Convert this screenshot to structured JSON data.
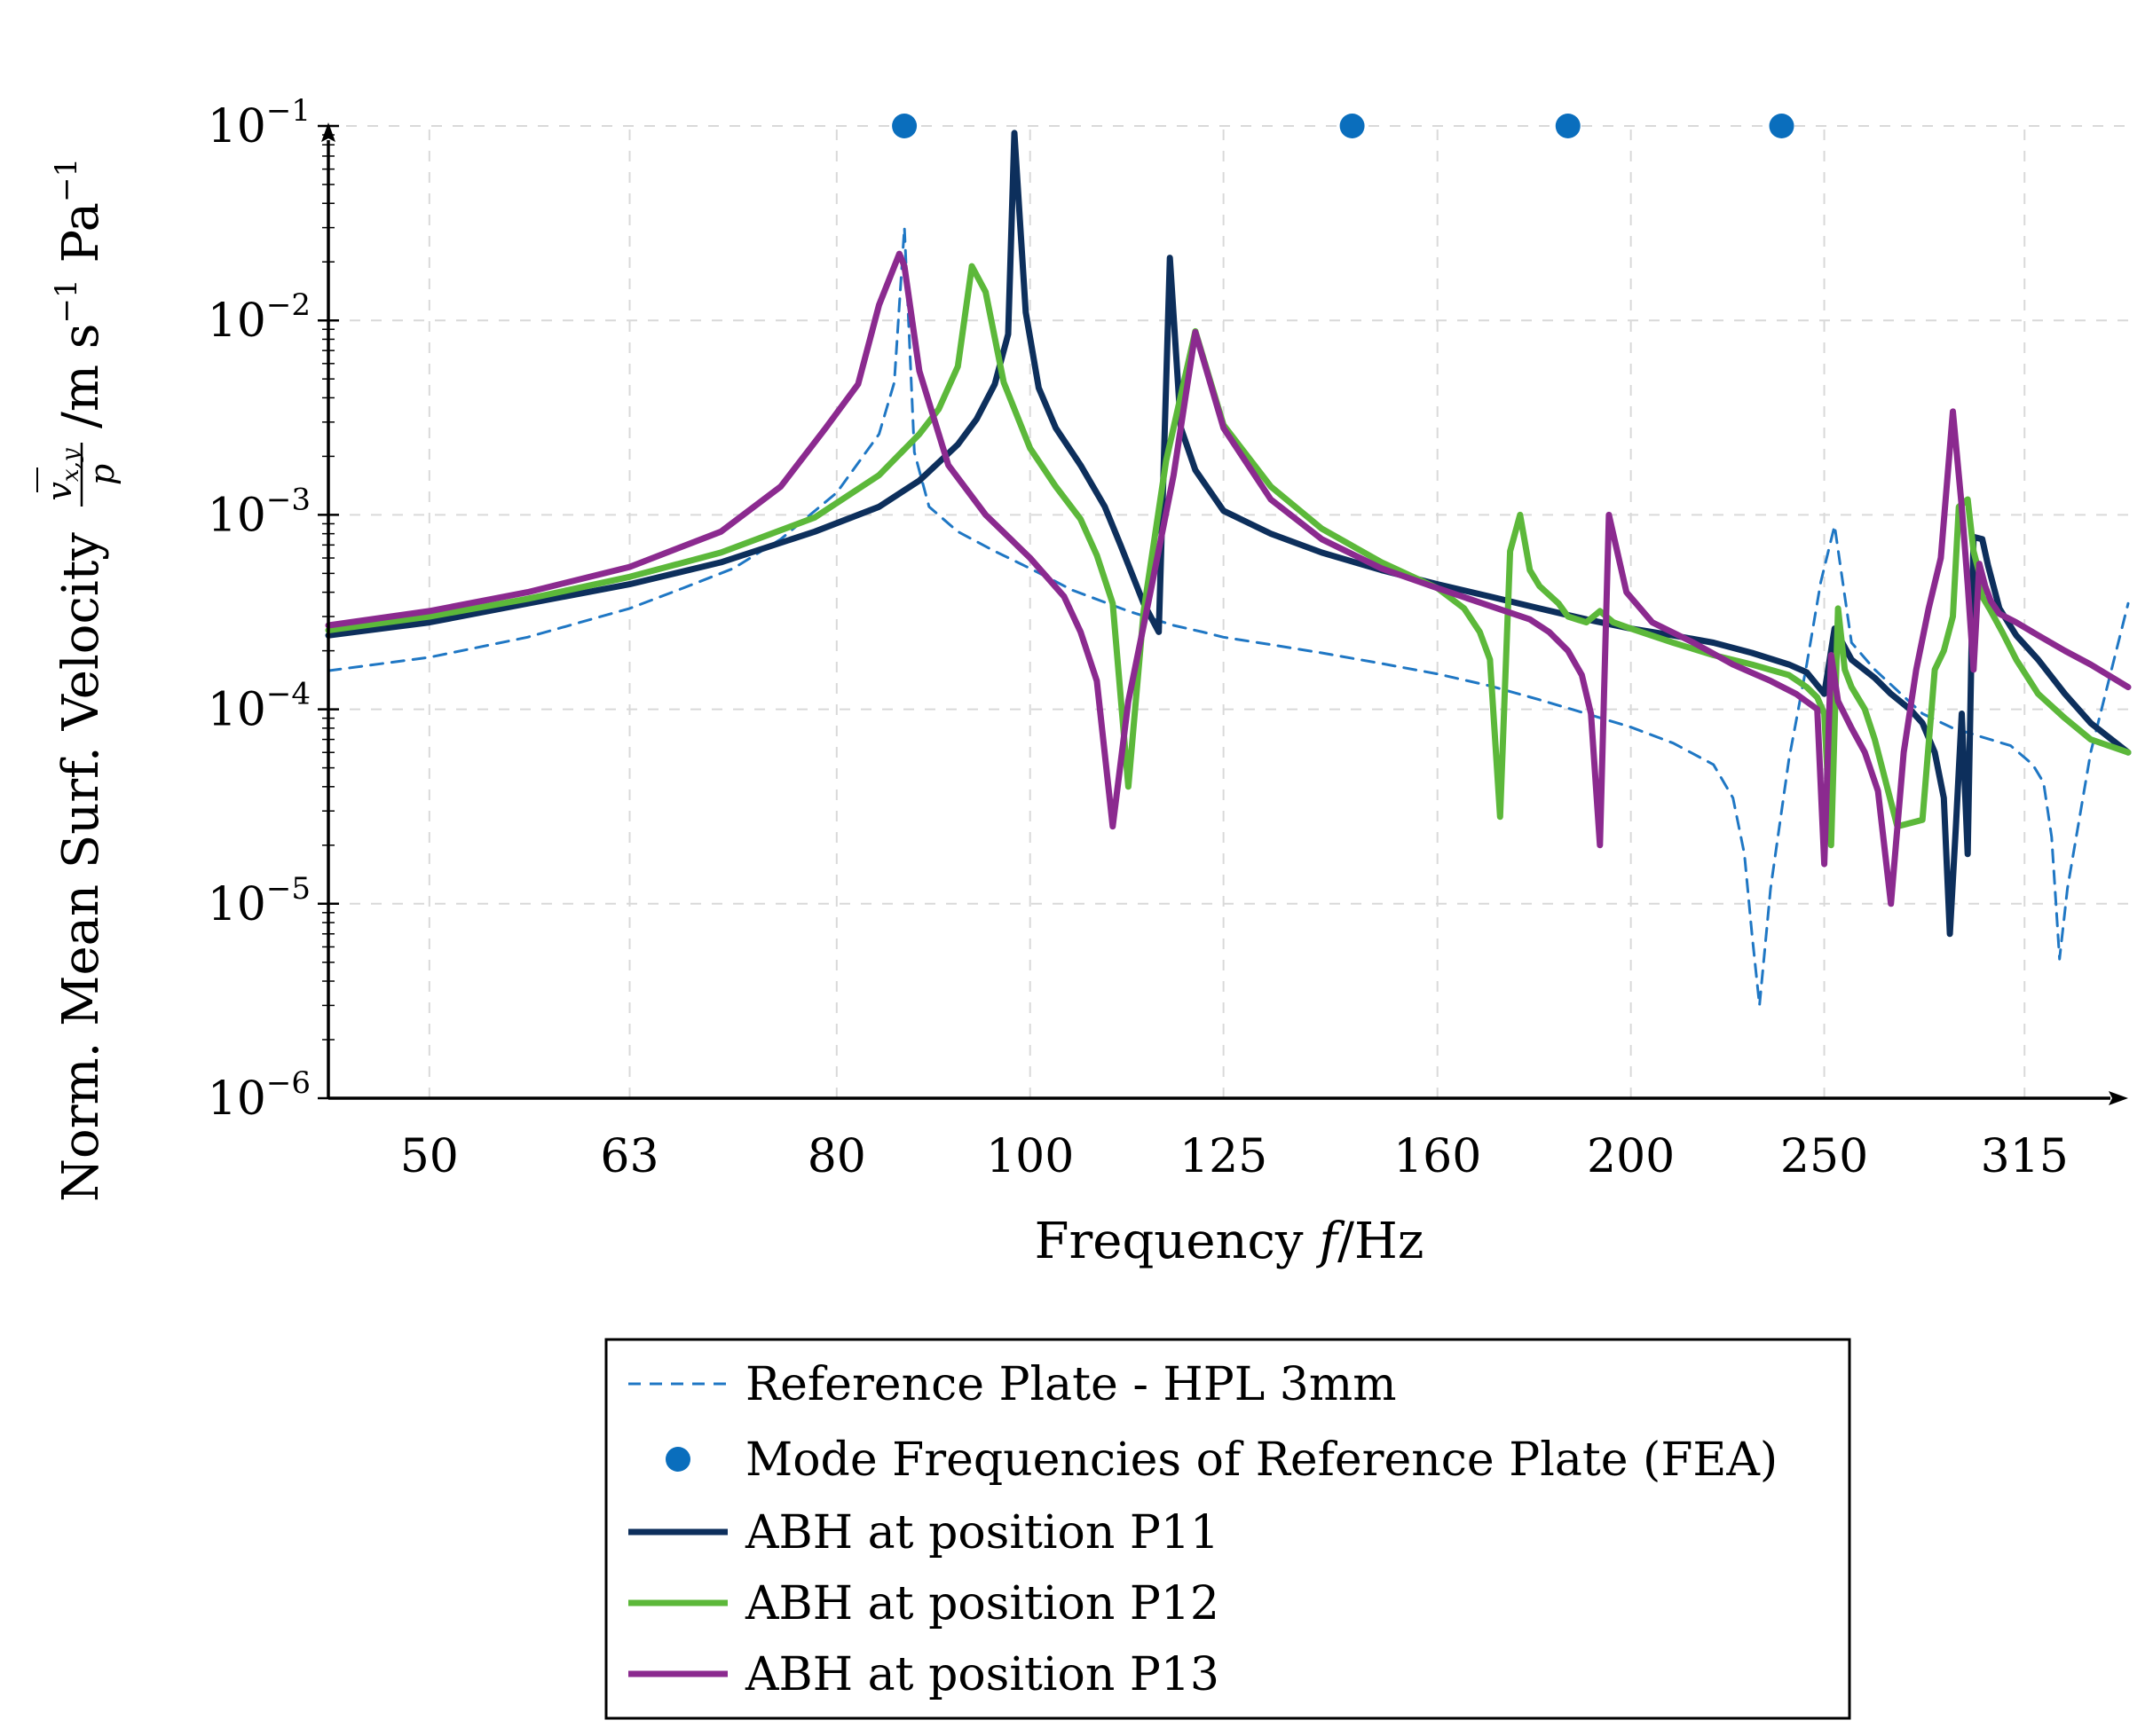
{
  "chart_data": {
    "type": "line",
    "xscale": "log",
    "yscale": "log",
    "xlim": [
      44.5,
      355
    ],
    "ylim": [
      1e-06,
      0.1
    ],
    "xlabel_text": "Frequency",
    "xlabel_var": "f",
    "xlabel_unit": "/Hz",
    "ylabel_prefix": "Norm. Mean Surf. Velocity",
    "ylabel_num": "v",
    "ylabel_num_sub": "x,y",
    "ylabel_den": "p",
    "ylabel_unit": "/m s",
    "ylabel_unit_exp1": "−1",
    "ylabel_unit2": " Pa",
    "ylabel_unit_exp2": "−1",
    "x_ticks": [
      50,
      63,
      80,
      100,
      125,
      160,
      200,
      250,
      315
    ],
    "x_tick_labels": [
      "50",
      "63",
      "80",
      "100",
      "125",
      "160",
      "200",
      "250",
      "315"
    ],
    "y_ticks": [
      {
        "value": 0.1,
        "base": "10",
        "exp": "−1"
      },
      {
        "value": 0.01,
        "base": "10",
        "exp": "−2"
      },
      {
        "value": 0.001,
        "base": "10",
        "exp": "−3"
      },
      {
        "value": 0.0001,
        "base": "10",
        "exp": "−4"
      },
      {
        "value": 1e-05,
        "base": "10",
        "exp": "−5"
      },
      {
        "value": 1e-06,
        "base": "10",
        "exp": "−6"
      }
    ],
    "legend_position": "bottom-center",
    "series": [
      {
        "name": "Reference Plate - HPL 3mm",
        "color": "#1f77c4",
        "style": "dashed",
        "x": [
          44.5,
          50,
          56,
          63,
          67,
          71,
          75,
          80,
          84,
          85.5,
          86.5,
          87.5,
          89,
          92,
          96,
          100,
          105,
          112,
          118,
          122,
          125,
          132,
          140,
          150,
          160,
          170,
          180,
          190,
          200,
          210,
          220,
          225,
          228,
          230,
          232,
          235,
          240,
          245,
          249,
          253,
          258,
          265,
          272,
          280,
          290,
          300,
          310,
          318,
          322,
          325,
          328,
          331,
          340,
          355
        ],
        "y": [
          0.000158,
          0.000185,
          0.000235,
          0.00033,
          0.00042,
          0.00053,
          0.00075,
          0.0013,
          0.0026,
          0.0048,
          0.03,
          0.0021,
          0.0011,
          0.00082,
          0.00065,
          0.00053,
          0.00041,
          0.00032,
          0.00027,
          0.00025,
          0.000235,
          0.000215,
          0.000195,
          0.000172,
          0.000152,
          0.000132,
          0.000112,
          9.5e-05,
          8.1e-05,
          6.7e-05,
          5.2e-05,
          3.5e-05,
          1.8e-05,
          7e-06,
          3e-06,
          1.2e-05,
          5.5e-05,
          0.00017,
          0.00045,
          0.00088,
          0.00022,
          0.00016,
          0.000125,
          9.5e-05,
          8e-05,
          7.2e-05,
          6.5e-05,
          5.2e-05,
          4.2e-05,
          2.2e-05,
          5.2e-06,
          1.2e-05,
          6e-05,
          0.00035
        ]
      },
      {
        "name": "Mode Frequencies of Reference Plate (FEA)",
        "color": "#0a6ebd",
        "style": "markers",
        "x": [
          86.5,
          145,
          186,
          238
        ],
        "y": [
          0.1,
          0.1,
          0.1,
          0.1
        ]
      },
      {
        "name": "ABH at position P11",
        "color": "#0d2f5c",
        "style": "solid",
        "x": [
          44.5,
          50,
          56,
          63,
          70,
          78,
          84,
          88,
          92,
          94,
          96,
          97.5,
          98.2,
          99.5,
          101,
          103,
          106,
          109,
          111,
          114,
          116,
          117.5,
          119,
          121,
          125,
          132,
          140,
          150,
          160,
          170,
          180,
          190,
          200,
          210,
          220,
          230,
          240,
          245,
          250,
          253,
          258,
          265,
          270,
          276,
          280,
          284,
          287,
          289,
          291,
          293,
          295,
          297,
          300,
          302,
          306,
          312,
          320,
          330,
          340,
          355
        ],
        "y": [
          0.00024,
          0.00028,
          0.00035,
          0.00044,
          0.00057,
          0.00082,
          0.0011,
          0.0015,
          0.0023,
          0.0031,
          0.0047,
          0.0085,
          0.092,
          0.011,
          0.0045,
          0.0028,
          0.0018,
          0.0011,
          0.0007,
          0.00035,
          0.00025,
          0.021,
          0.0028,
          0.0017,
          0.00105,
          0.0008,
          0.00064,
          0.00052,
          0.00044,
          0.00038,
          0.00033,
          0.00029,
          0.00026,
          0.00024,
          0.00022,
          0.000195,
          0.00017,
          0.000155,
          0.00012,
          0.00026,
          0.00018,
          0.000145,
          0.00012,
          0.0001,
          8.5e-05,
          6e-05,
          3.5e-05,
          7e-06,
          2.5e-05,
          9.5e-05,
          1.8e-05,
          0.00077,
          0.00075,
          0.00055,
          0.00033,
          0.00024,
          0.00018,
          0.00012,
          8.5e-05,
          6e-05
        ]
      },
      {
        "name": "ABH at position P12",
        "color": "#5cb83a",
        "style": "solid",
        "x": [
          44.5,
          50,
          56,
          63,
          70,
          78,
          84,
          88,
          90,
          92,
          93.5,
          95,
          97,
          100,
          103,
          106,
          108,
          110,
          112,
          114,
          117,
          121,
          125,
          132,
          140,
          150,
          160,
          165,
          168,
          170,
          172,
          174,
          176,
          178,
          180,
          184,
          186,
          190,
          193,
          196,
          200,
          210,
          220,
          230,
          240,
          245,
          248,
          250,
          252,
          254,
          256,
          258,
          262,
          265,
          272,
          280,
          284,
          287,
          290,
          292,
          295,
          297,
          299,
          300,
          303,
          307,
          312,
          320,
          330,
          340,
          355
        ],
        "y": [
          0.000255,
          0.0003,
          0.00037,
          0.00048,
          0.00064,
          0.00097,
          0.0016,
          0.0026,
          0.0035,
          0.0058,
          0.019,
          0.014,
          0.0048,
          0.0022,
          0.0014,
          0.00095,
          0.00062,
          0.00035,
          4e-05,
          0.00032,
          0.0019,
          0.0088,
          0.0029,
          0.0014,
          0.00085,
          0.00057,
          0.00042,
          0.00033,
          0.00025,
          0.00018,
          2.8e-05,
          0.00065,
          0.001,
          0.00052,
          0.00043,
          0.00035,
          0.0003,
          0.00028,
          0.00032,
          0.00028,
          0.00026,
          0.00022,
          0.00019,
          0.00017,
          0.00015,
          0.00013,
          0.000115,
          9.5e-05,
          2e-05,
          0.00033,
          0.00016,
          0.00013,
          0.0001,
          7e-05,
          2.5e-05,
          2.7e-05,
          0.00016,
          0.0002,
          0.0003,
          0.0011,
          0.0012,
          0.00065,
          0.0005,
          0.00038,
          0.00032,
          0.00025,
          0.00018,
          0.00012,
          9e-05,
          7e-05,
          6e-05
        ]
      },
      {
        "name": "ABH at position P13",
        "color": "#8b2a8f",
        "style": "solid",
        "x": [
          44.5,
          50,
          56,
          63,
          70,
          75,
          79,
          82,
          84,
          86,
          86.5,
          88,
          91,
          95,
          100,
          104,
          106,
          108,
          110,
          112,
          115,
          118,
          121,
          125,
          132,
          140,
          150,
          160,
          170,
          178,
          182,
          186,
          189,
          191,
          193,
          195,
          199,
          205,
          215,
          225,
          235,
          242,
          248,
          250,
          252,
          254,
          258,
          262,
          266,
          270,
          274,
          278,
          282,
          286,
          290,
          293,
          295,
          297,
          299,
          301,
          303,
          306,
          312,
          320,
          330,
          340,
          355
        ],
        "y": [
          0.00027,
          0.00032,
          0.0004,
          0.00054,
          0.00082,
          0.0014,
          0.0028,
          0.0047,
          0.012,
          0.022,
          0.019,
          0.0055,
          0.0018,
          0.001,
          0.0006,
          0.00038,
          0.00025,
          0.00014,
          2.5e-05,
          0.00011,
          0.00042,
          0.0016,
          0.0087,
          0.0028,
          0.0012,
          0.00075,
          0.00053,
          0.00042,
          0.00034,
          0.00029,
          0.00025,
          0.0002,
          0.00015,
          9.5e-05,
          2e-05,
          0.001,
          0.0004,
          0.00028,
          0.00022,
          0.00017,
          0.00014,
          0.00012,
          0.0001,
          1.6e-05,
          0.00019,
          0.00011,
          8e-05,
          6e-05,
          3.8e-05,
          1e-05,
          6e-05,
          0.00016,
          0.00033,
          0.0006,
          0.0034,
          0.0011,
          0.00044,
          0.00016,
          0.00056,
          0.00043,
          0.00036,
          0.00031,
          0.00028,
          0.00024,
          0.0002,
          0.00017,
          0.00013
        ]
      }
    ]
  }
}
